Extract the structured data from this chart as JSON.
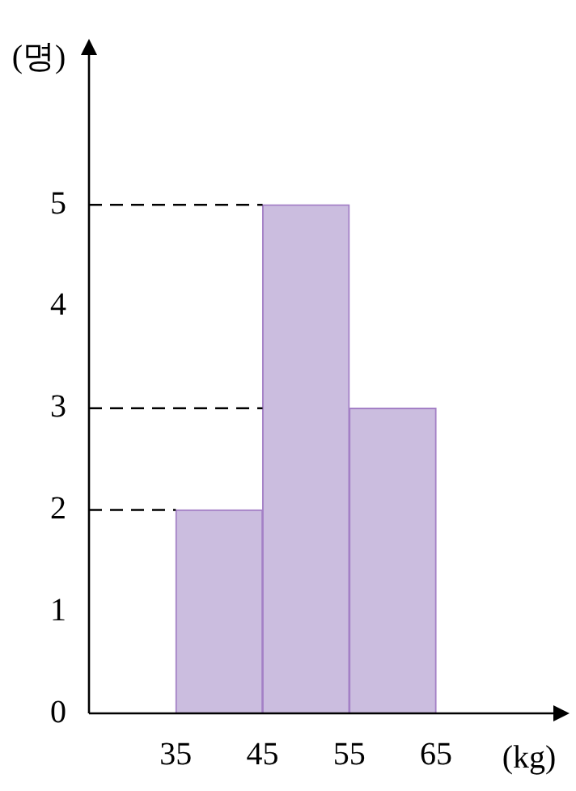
{
  "chart_data": {
    "type": "histogram",
    "xlabel": "(kg)",
    "ylabel": "(명)",
    "bins": [
      35,
      45,
      55,
      65
    ],
    "values": [
      2,
      5,
      3
    ],
    "color": "#cbbddf",
    "xlim": [
      25,
      80
    ],
    "xticks": [
      35,
      45,
      55,
      65
    ],
    "ylim": [
      0,
      6.6
    ],
    "yticks": [
      0,
      1,
      2,
      3,
      4,
      5
    ],
    "grid": false,
    "ref_lines": [
      {
        "axis": "y",
        "value": 2,
        "line_style": "dashed"
      },
      {
        "axis": "y",
        "value": 3,
        "line_style": "dashed"
      },
      {
        "axis": "y",
        "value": 5,
        "line_style": "dashed"
      }
    ]
  }
}
